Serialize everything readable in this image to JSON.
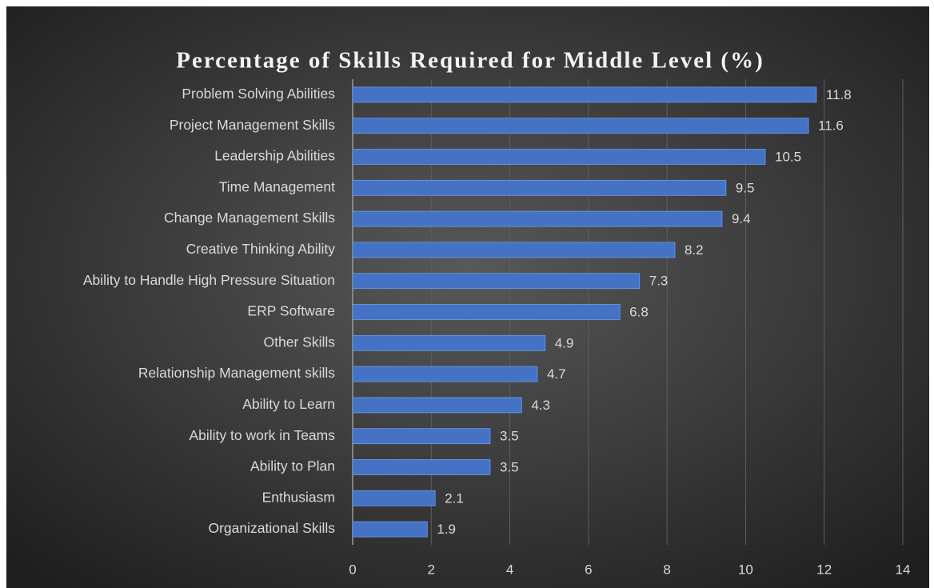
{
  "chart_data": {
    "type": "barh",
    "title": "Percentage of Skills Required for Middle Level (%)",
    "categories": [
      "Problem Solving Abilities",
      "Project Management Skills",
      "Leadership Abilities",
      "Time Management",
      "Change Management Skills",
      "Creative Thinking Ability",
      "Ability to Handle High Pressure Situation",
      "ERP Software",
      "Other Skills",
      "Relationship Management skills",
      "Ability to Learn",
      "Ability to work in Teams",
      "Ability to Plan",
      "Enthusiasm",
      "Organizational Skills"
    ],
    "values": [
      11.8,
      11.6,
      10.5,
      9.5,
      9.4,
      8.2,
      7.3,
      6.8,
      4.9,
      4.7,
      4.3,
      3.5,
      3.5,
      2.1,
      1.9
    ],
    "color": "#4472c4",
    "xlim": [
      0,
      14
    ],
    "xticks": [
      0,
      2,
      4,
      6,
      8,
      10,
      12,
      14
    ],
    "grid": true
  }
}
